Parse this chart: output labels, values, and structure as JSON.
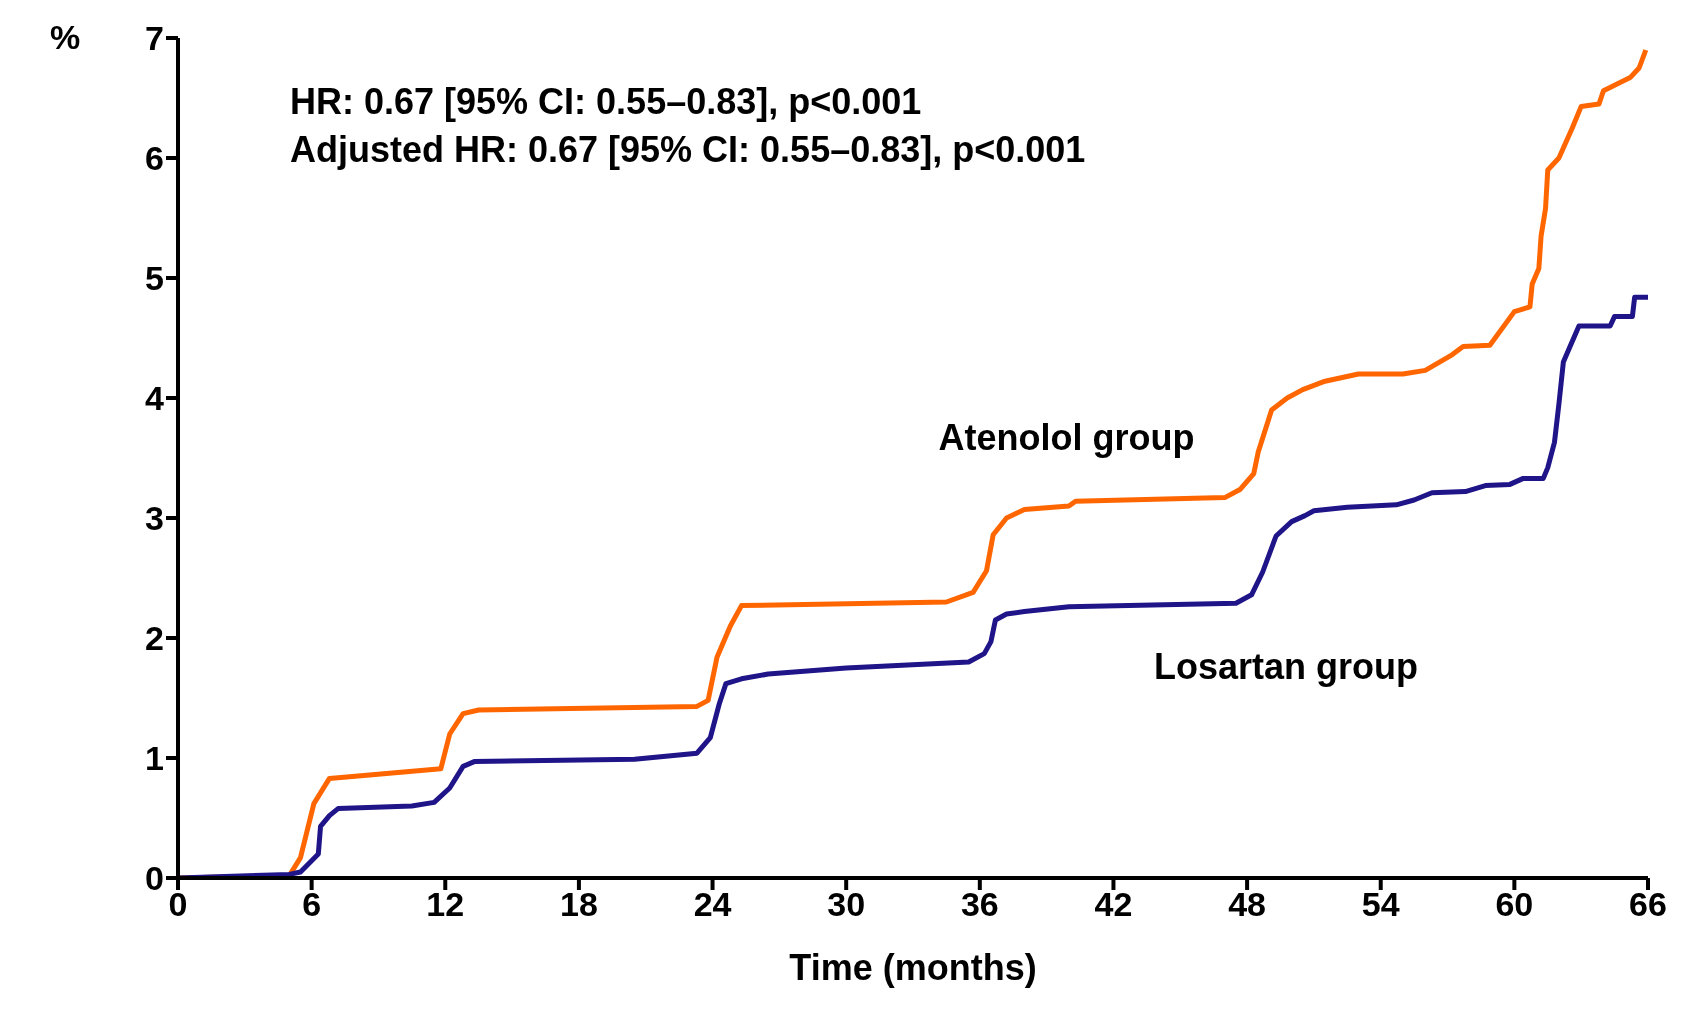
{
  "chart_data": {
    "type": "line",
    "xlabel": "Time (months)",
    "ylabel": "%",
    "xlim": [
      0,
      66
    ],
    "xticks": [
      0,
      6,
      12,
      18,
      24,
      30,
      36,
      42,
      48,
      54,
      60,
      66
    ],
    "ylim": [
      0,
      7
    ],
    "yticks": [
      0,
      1,
      2,
      3,
      4,
      5,
      6,
      7
    ],
    "marker": "none",
    "line_style": "solid",
    "grid": false,
    "legend": false,
    "series": [
      {
        "name": "Atenolol group",
        "color": "#ff6600",
        "x": [
          0,
          5,
          5.5,
          6.1,
          6.8,
          11.8,
          12.2,
          12.8,
          13.5,
          23.3,
          23.8,
          24.2,
          24.8,
          25.3,
          34.5,
          35.7,
          36.3,
          36.6,
          37.2,
          38,
          40,
          40.3,
          47,
          47.7,
          48.3,
          48.5,
          49.1,
          49.8,
          50.5,
          51.5,
          53,
          55,
          56,
          57.2,
          57.7,
          58.9,
          60,
          60.7,
          60.8,
          61.1,
          61.2,
          61.4,
          61.5,
          62,
          62.6,
          63,
          63.8,
          64,
          65.2,
          65.6,
          65.9
        ],
        "values": [
          0,
          0.02,
          0.17,
          0.62,
          0.83,
          0.91,
          1.2,
          1.37,
          1.4,
          1.43,
          1.48,
          1.84,
          2.1,
          2.27,
          2.3,
          2.38,
          2.56,
          2.86,
          3.0,
          3.07,
          3.1,
          3.14,
          3.17,
          3.24,
          3.37,
          3.55,
          3.9,
          4.0,
          4.07,
          4.14,
          4.2,
          4.2,
          4.23,
          4.36,
          4.43,
          4.44,
          4.72,
          4.76,
          4.95,
          5.08,
          5.35,
          5.58,
          5.9,
          6.0,
          6.25,
          6.43,
          6.45,
          6.56,
          6.67,
          6.75,
          6.9
        ]
      },
      {
        "name": "Losartan group",
        "color": "#1f1488",
        "x": [
          0,
          5,
          5.5,
          6.3,
          6.4,
          6.8,
          7.2,
          10.5,
          11.5,
          12.2,
          12.8,
          13.3,
          20.5,
          23.3,
          23.9,
          24.3,
          24.6,
          25.3,
          26.5,
          30,
          35.5,
          36.2,
          36.5,
          36.7,
          37.2,
          38,
          40,
          47.5,
          48.2,
          48.7,
          49.3,
          50,
          50.6,
          51,
          52.5,
          54.7,
          55.5,
          56.3,
          57.8,
          58.7,
          59.8,
          60.4,
          61.3,
          61.5,
          61.8,
          62,
          62.2,
          62.5,
          62.9,
          64.3,
          64.5,
          65.3,
          65.4,
          66
        ],
        "values": [
          0,
          0.03,
          0.05,
          0.2,
          0.43,
          0.52,
          0.58,
          0.6,
          0.63,
          0.75,
          0.93,
          0.97,
          0.99,
          1.04,
          1.17,
          1.45,
          1.62,
          1.66,
          1.7,
          1.75,
          1.8,
          1.87,
          1.97,
          2.15,
          2.2,
          2.22,
          2.26,
          2.29,
          2.36,
          2.55,
          2.85,
          2.97,
          3.02,
          3.06,
          3.09,
          3.11,
          3.15,
          3.21,
          3.22,
          3.27,
          3.28,
          3.33,
          3.33,
          3.42,
          3.63,
          3.95,
          4.3,
          4.43,
          4.6,
          4.6,
          4.68,
          4.68,
          4.84,
          4.84
        ]
      }
    ],
    "annotations": [
      "HR: 0.67 [95% CI:  0.55–0.83], p<0.001",
      "Adjusted HR: 0.67 [95% CI: 0.55–0.83], p<0.001"
    ]
  }
}
